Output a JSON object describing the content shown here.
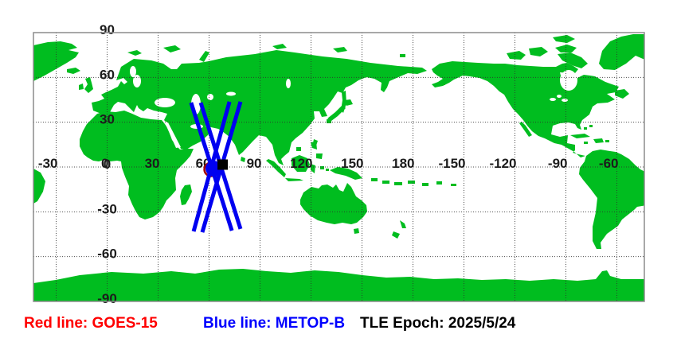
{
  "map": {
    "lat_labels": [
      "90",
      "60",
      "30",
      "0",
      "-30",
      "-60",
      "-90"
    ],
    "lon_labels": [
      "-30",
      "0",
      "30",
      "60",
      "90",
      "120",
      "150",
      "180",
      "-150",
      "-120",
      "-90",
      "-60"
    ],
    "land_color": "#00bd1f",
    "ocean_color": "#ffffff",
    "grid_color": "#2e2e2e",
    "frame_color": "#8c8c8c",
    "axis_label_color": "#1c1c1c"
  },
  "satellites": {
    "goes15": {
      "name": "GOES-15",
      "legend_color": "#ff0000",
      "marker": {
        "shape": "ring",
        "lon": 61.2,
        "lat": -1.6,
        "color": "#a00000"
      }
    },
    "metopb": {
      "name": "METOP-B",
      "legend_color": "#0000ff",
      "track_color": "#0000f0",
      "marker": {
        "shape": "dot",
        "lon": 62.6,
        "lat": -1.05,
        "color": "#0000f0"
      },
      "passes": [
        {
          "from": {
            "lon": 49.4,
            "lat": 43.1
          },
          "to": {
            "lon": 73.4,
            "lat": -42.6
          }
        },
        {
          "from": {
            "lon": 55.1,
            "lat": 43.1
          },
          "to": {
            "lon": 78.5,
            "lat": -41.5
          }
        },
        {
          "from": {
            "lon": 72.0,
            "lat": 43.7
          },
          "to": {
            "lon": 50.9,
            "lat": -43.1
          }
        },
        {
          "from": {
            "lon": 78.5,
            "lat": 43.7
          },
          "to": {
            "lon": 56.0,
            "lat": -43.7
          }
        }
      ]
    }
  },
  "black_square_marker": {
    "shape": "square",
    "lon": 68.0,
    "lat": 1.6,
    "color": "#000000"
  },
  "legend": {
    "items": [
      {
        "label": "Red line: GOES-15",
        "color": "#ff0000"
      },
      {
        "label": "Blue line: METOP-B",
        "color": "#0000ff"
      },
      {
        "label": "TLE Epoch: 2025/5/24",
        "color": "#000000"
      }
    ]
  }
}
